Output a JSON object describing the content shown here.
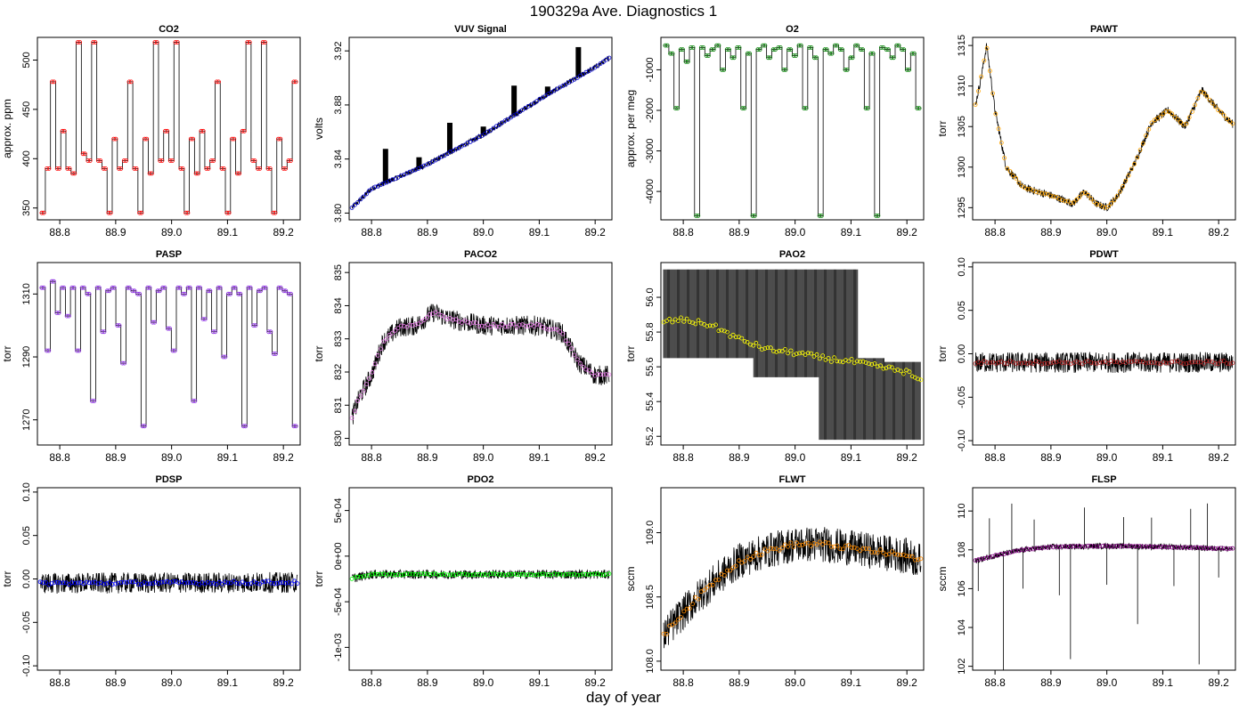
{
  "figure": {
    "title": "190329a   Ave. Diagnostics 1",
    "xlabel": "day of year"
  },
  "chart_data": [
    {
      "type": "line",
      "title": "CO2",
      "ylabel": "approx. ppm",
      "xlim": [
        88.76,
        89.23
      ],
      "ylim": [
        338,
        523
      ],
      "xticks": [
        88.8,
        88.9,
        89.0,
        89.1,
        89.2
      ],
      "yticks": [
        350,
        400,
        450,
        500
      ],
      "ytick_labels": [
        "350",
        "400",
        "450",
        "500"
      ],
      "marker_color": "#ff0000",
      "style": "steps",
      "steps": [
        345,
        390,
        478,
        390,
        428,
        390,
        385,
        518,
        405,
        398,
        518,
        398,
        390,
        345,
        420,
        390,
        398,
        478,
        390,
        345,
        420,
        385,
        518,
        398,
        428,
        398,
        518,
        390,
        345,
        420,
        385,
        428,
        390,
        398,
        478,
        390,
        345,
        420,
        385,
        428,
        518,
        398,
        390,
        518,
        390,
        345,
        420,
        390,
        398,
        478
      ]
    },
    {
      "type": "line",
      "title": "VUV Signal",
      "ylabel": "volts",
      "xlim": [
        88.76,
        89.23
      ],
      "ylim": [
        3.795,
        3.93
      ],
      "xticks": [
        88.8,
        88.9,
        89.0,
        89.1,
        89.2
      ],
      "yticks": [
        3.8,
        3.84,
        3.88,
        3.92
      ],
      "ytick_labels": [
        "3.80",
        "3.84",
        "3.88",
        "3.92"
      ],
      "marker_color": "#0000cd",
      "style": "trend",
      "trend": [
        [
          88.76,
          3.802
        ],
        [
          88.8,
          3.818
        ],
        [
          88.9,
          3.836
        ],
        [
          89.0,
          3.858
        ],
        [
          89.1,
          3.884
        ],
        [
          89.2,
          3.908
        ],
        [
          89.23,
          3.916
        ]
      ],
      "noise": 0.002,
      "spikes": [
        {
          "x": 88.825,
          "h": 0.025
        },
        {
          "x": 88.885,
          "h": 0.008
        },
        {
          "x": 88.94,
          "h": 0.022
        },
        {
          "x": 89.0,
          "h": 0.006
        },
        {
          "x": 89.055,
          "h": 0.022
        },
        {
          "x": 89.115,
          "h": 0.006
        },
        {
          "x": 89.17,
          "h": 0.022
        }
      ]
    },
    {
      "type": "line",
      "title": "O2",
      "ylabel": "approx. per meg",
      "xlim": [
        88.76,
        89.23
      ],
      "ylim": [
        -4700,
        -200
      ],
      "xticks": [
        88.8,
        88.9,
        89.0,
        89.1,
        89.2
      ],
      "yticks": [
        -4000,
        -3000,
        -2000,
        -1000
      ],
      "ytick_labels": [
        "-4000",
        "-3000",
        "-2000",
        "-1000"
      ],
      "marker_color": "#008000",
      "style": "steps",
      "steps": [
        -400,
        -600,
        -1950,
        -500,
        -800,
        -450,
        -4600,
        -450,
        -650,
        -500,
        -400,
        -1000,
        -500,
        -700,
        -450,
        -1950,
        -600,
        -4600,
        -500,
        -400,
        -700,
        -500,
        -450,
        -1000,
        -500,
        -650,
        -400,
        -1950,
        -450,
        -700,
        -4600,
        -500,
        -600,
        -400,
        -500,
        -1000,
        -700,
        -400,
        -500,
        -1950,
        -600,
        -4600,
        -450,
        -500,
        -700,
        -400,
        -500,
        -1000,
        -600,
        -1950
      ]
    },
    {
      "type": "line",
      "title": "PAWT",
      "ylabel": "torr",
      "xlim": [
        88.76,
        89.23
      ],
      "ylim": [
        1293.5,
        1316
      ],
      "xticks": [
        88.8,
        88.9,
        89.0,
        89.1,
        89.2
      ],
      "yticks": [
        1295,
        1300,
        1305,
        1310,
        1315
      ],
      "ytick_labels": [
        "1295",
        "1300",
        "1305",
        "1310",
        "1315"
      ],
      "marker_color": "#ffa500",
      "style": "trend",
      "trend": [
        [
          88.76,
          1306
        ],
        [
          88.775,
          1311
        ],
        [
          88.785,
          1315
        ],
        [
          88.8,
          1307
        ],
        [
          88.82,
          1300
        ],
        [
          88.85,
          1297.5
        ],
        [
          88.9,
          1296.5
        ],
        [
          88.94,
          1295.5
        ],
        [
          88.96,
          1297
        ],
        [
          88.98,
          1295.5
        ],
        [
          89.0,
          1295
        ],
        [
          89.02,
          1296.5
        ],
        [
          89.05,
          1300.5
        ],
        [
          89.08,
          1305.5
        ],
        [
          89.11,
          1307
        ],
        [
          89.14,
          1305
        ],
        [
          89.17,
          1309.5
        ],
        [
          89.2,
          1307
        ],
        [
          89.23,
          1305
        ]
      ],
      "noise": 0.5
    },
    {
      "type": "line",
      "title": "PASP",
      "ylabel": "torr",
      "xlim": [
        88.76,
        89.23
      ],
      "ylim": [
        1262,
        1320
      ],
      "xticks": [
        88.8,
        88.9,
        89.0,
        89.1,
        89.2
      ],
      "yticks": [
        1270,
        1290,
        1310
      ],
      "ytick_labels": [
        "1270",
        "1290",
        "1310"
      ],
      "marker_color": "#8a2be2",
      "style": "steps",
      "steps": [
        1312,
        1292,
        1314,
        1304,
        1312,
        1303,
        1312,
        1292,
        1312,
        1310,
        1276,
        1312,
        1298,
        1311,
        1312,
        1300,
        1288,
        1312,
        1311,
        1310,
        1268,
        1312,
        1301,
        1311,
        1312,
        1299,
        1292,
        1312,
        1310,
        1312,
        1276,
        1312,
        1302,
        1311,
        1298,
        1312,
        1290,
        1310,
        1312,
        1310,
        1268,
        1312,
        1300,
        1311,
        1312,
        1298,
        1291,
        1312,
        1311,
        1310,
        1268
      ]
    },
    {
      "type": "line",
      "title": "PACO2",
      "ylabel": "torr",
      "xlim": [
        88.76,
        89.23
      ],
      "ylim": [
        829.8,
        835.3
      ],
      "xticks": [
        88.8,
        88.9,
        89.0,
        89.1,
        89.2
      ],
      "yticks": [
        830,
        831,
        832,
        833,
        834,
        835
      ],
      "ytick_labels": [
        "830",
        "831",
        "832",
        "833",
        "834",
        "835"
      ],
      "marker_color": "#ee82ee",
      "style": "trend",
      "trend": [
        [
          88.76,
          830.4
        ],
        [
          88.78,
          831.3
        ],
        [
          88.8,
          831.9
        ],
        [
          88.82,
          832.9
        ],
        [
          88.85,
          833.35
        ],
        [
          88.88,
          833.4
        ],
        [
          88.91,
          833.8
        ],
        [
          88.94,
          833.6
        ],
        [
          89.0,
          833.4
        ],
        [
          89.1,
          833.4
        ],
        [
          89.14,
          833.2
        ],
        [
          89.17,
          832.3
        ],
        [
          89.2,
          831.9
        ],
        [
          89.23,
          831.9
        ]
      ],
      "noise": 0.3
    },
    {
      "type": "line",
      "title": "PAO2",
      "ylabel": "torr",
      "xlim": [
        88.76,
        89.23
      ],
      "ylim": [
        55.15,
        56.2
      ],
      "xticks": [
        88.8,
        88.9,
        89.0,
        89.1,
        89.2
      ],
      "yticks": [
        55.2,
        55.4,
        55.6,
        55.8,
        56.0
      ],
      "ytick_labels": [
        "55.2",
        "55.4",
        "55.6",
        "55.8",
        "56.0"
      ],
      "marker_color": "#ffff00",
      "style": "quantized",
      "trend": [
        [
          88.76,
          55.86
        ],
        [
          88.8,
          55.87
        ],
        [
          88.85,
          55.84
        ],
        [
          88.9,
          55.76
        ],
        [
          88.95,
          55.7
        ],
        [
          89.0,
          55.68
        ],
        [
          89.05,
          55.65
        ],
        [
          89.1,
          55.63
        ],
        [
          89.15,
          55.6
        ],
        [
          89.2,
          55.57
        ],
        [
          89.23,
          55.5
        ]
      ],
      "levels": [
        55.18,
        55.54,
        55.65,
        56.16
      ]
    },
    {
      "type": "line",
      "title": "PDWT",
      "ylabel": "torr",
      "xlim": [
        88.76,
        89.23
      ],
      "ylim": [
        -0.105,
        0.105
      ],
      "xticks": [
        88.8,
        88.9,
        89.0,
        89.1,
        89.2
      ],
      "yticks": [
        -0.1,
        -0.05,
        0.0,
        0.05,
        0.1
      ],
      "ytick_labels": [
        "-0.10",
        "-0.05",
        "0.00",
        "0.05",
        "0.10"
      ],
      "marker_color": "#b22222",
      "style": "trend",
      "trend": [
        [
          88.76,
          -0.01
        ],
        [
          89.23,
          -0.01
        ]
      ],
      "noise": 0.012
    },
    {
      "type": "line",
      "title": "PDSP",
      "ylabel": "torr",
      "xlim": [
        88.76,
        89.23
      ],
      "ylim": [
        -0.105,
        0.105
      ],
      "xticks": [
        88.8,
        88.9,
        89.0,
        89.1,
        89.2
      ],
      "yticks": [
        -0.1,
        -0.05,
        0.0,
        0.05,
        0.1
      ],
      "ytick_labels": [
        "-0.10",
        "-0.05",
        "0.00",
        "0.05",
        "0.10"
      ],
      "marker_color": "#0000ff",
      "style": "trend",
      "trend": [
        [
          88.76,
          -0.005
        ],
        [
          89.23,
          -0.004
        ]
      ],
      "noise": 0.012
    },
    {
      "type": "line",
      "title": "PDO2",
      "ylabel": "torr",
      "xlim": [
        88.76,
        89.23
      ],
      "ylim": [
        -0.00125,
        0.00075
      ],
      "xticks": [
        88.8,
        88.9,
        89.0,
        89.1,
        89.2
      ],
      "yticks": [
        -0.001,
        -0.0005,
        0,
        0.0005
      ],
      "ytick_labels": [
        "-1e-03",
        "-5e-04",
        "0e+00",
        "5e-04"
      ],
      "marker_color": "#00ff00",
      "style": "trend",
      "trend": [
        [
          88.76,
          -0.00025
        ],
        [
          88.8,
          -0.0002
        ],
        [
          88.9,
          -0.0002
        ],
        [
          89.23,
          -0.0002
        ]
      ],
      "noise": 5e-05
    },
    {
      "type": "line",
      "title": "FLWT",
      "ylabel": "sccm",
      "xlim": [
        88.76,
        89.23
      ],
      "ylim": [
        107.93,
        109.35
      ],
      "xticks": [
        88.8,
        88.9,
        89.0,
        89.1,
        89.2
      ],
      "yticks": [
        108.0,
        108.5,
        109.0
      ],
      "ytick_labels": [
        "108.0",
        "108.5",
        "109.0"
      ],
      "marker_color": "#ff8c00",
      "style": "trend",
      "trend": [
        [
          88.76,
          108.18
        ],
        [
          88.8,
          108.38
        ],
        [
          88.85,
          108.6
        ],
        [
          88.9,
          108.78
        ],
        [
          88.95,
          108.86
        ],
        [
          89.0,
          108.91
        ],
        [
          89.05,
          108.91
        ],
        [
          89.1,
          108.88
        ],
        [
          89.15,
          108.85
        ],
        [
          89.2,
          108.82
        ],
        [
          89.23,
          108.77
        ]
      ],
      "noise": 0.14
    },
    {
      "type": "line",
      "title": "FLSP",
      "ylabel": "sccm",
      "xlim": [
        88.76,
        89.23
      ],
      "ylim": [
        101.8,
        111.2
      ],
      "xticks": [
        88.8,
        88.9,
        89.0,
        89.1,
        89.2
      ],
      "yticks": [
        102,
        104,
        106,
        108,
        110
      ],
      "ytick_labels": [
        "102",
        "104",
        "106",
        "108",
        "110"
      ],
      "marker_color": "#800080",
      "style": "trend",
      "trend": [
        [
          88.76,
          107.4
        ],
        [
          88.8,
          107.7
        ],
        [
          88.85,
          108.0
        ],
        [
          88.9,
          108.15
        ],
        [
          89.0,
          108.2
        ],
        [
          89.1,
          108.15
        ],
        [
          89.23,
          108.05
        ]
      ],
      "noise": 0.15,
      "spikes": [
        {
          "x": 88.77,
          "h": -1.6
        },
        {
          "x": 88.79,
          "h": 2.0
        },
        {
          "x": 88.815,
          "h": -6.0
        },
        {
          "x": 88.83,
          "h": 2.5
        },
        {
          "x": 88.85,
          "h": -2.0
        },
        {
          "x": 88.87,
          "h": 1.5
        },
        {
          "x": 88.915,
          "h": -2.5
        },
        {
          "x": 88.935,
          "h": -5.8
        },
        {
          "x": 88.96,
          "h": 2.0
        },
        {
          "x": 89.0,
          "h": -2.0
        },
        {
          "x": 89.03,
          "h": 1.5
        },
        {
          "x": 89.055,
          "h": -4.0
        },
        {
          "x": 89.08,
          "h": 1.5
        },
        {
          "x": 89.12,
          "h": -2.0
        },
        {
          "x": 89.15,
          "h": 2.0
        },
        {
          "x": 89.165,
          "h": -6.0
        },
        {
          "x": 89.18,
          "h": 2.3
        },
        {
          "x": 89.2,
          "h": -1.5
        }
      ]
    }
  ]
}
